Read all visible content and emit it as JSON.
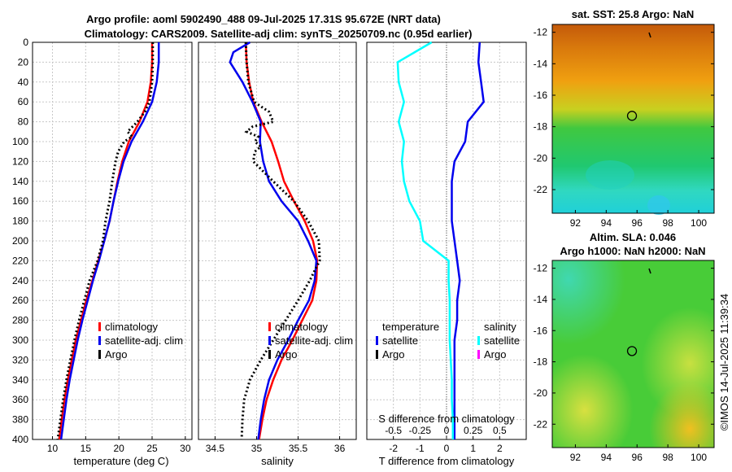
{
  "header": {
    "title_line1": "Argo profile: aoml 5902490_488 09-Jul-2025 17.31S 95.672E (NRT data)",
    "title_line2": "Climatology: CARS2009. Satellite-adj clim: synTS_20250709.nc (0.95d earlier)"
  },
  "watermark": "©IMOS 14-Jul-2025 11:39:34",
  "colors": {
    "climatology": "#ff0000",
    "satellite": "#0000ee",
    "argo": "#000000",
    "sal_sat": "#00ffff",
    "sal_argo": "#ff00ff"
  },
  "chart_data": [
    {
      "id": "temperature",
      "type": "line",
      "xlabel": "temperature (deg C)",
      "xlim": [
        7,
        31
      ],
      "xticks": [
        10,
        15,
        20,
        25,
        30
      ],
      "ylim": [
        0,
        400
      ],
      "yticks": [
        0,
        20,
        40,
        60,
        80,
        100,
        120,
        140,
        160,
        180,
        200,
        220,
        240,
        260,
        280,
        300,
        320,
        340,
        360,
        380,
        400
      ],
      "series": [
        {
          "name": "climatology",
          "color": "#ff0000",
          "depth": [
            0,
            20,
            40,
            60,
            80,
            100,
            120,
            140,
            160,
            180,
            200,
            220,
            240,
            260,
            280,
            300,
            320,
            340,
            360,
            380,
            400
          ],
          "values": [
            25.0,
            25.0,
            24.8,
            24.3,
            23.1,
            21.5,
            20.5,
            19.8,
            19.2,
            18.6,
            17.8,
            16.9,
            16.0,
            15.1,
            14.3,
            13.5,
            12.9,
            12.3,
            11.8,
            11.4,
            11.0
          ]
        },
        {
          "name": "satellite-adj. clim",
          "color": "#0000ee",
          "depth": [
            0,
            20,
            40,
            60,
            80,
            100,
            120,
            140,
            160,
            180,
            200,
            220,
            240,
            260,
            280,
            300,
            320,
            340,
            360,
            380,
            400
          ],
          "values": [
            26.0,
            26.0,
            25.7,
            25.0,
            23.6,
            21.9,
            20.7,
            19.9,
            19.2,
            18.6,
            17.8,
            17.0,
            16.1,
            15.3,
            14.5,
            13.8,
            13.2,
            12.6,
            12.1,
            11.7,
            11.3
          ]
        },
        {
          "name": "Argo",
          "color": "#000000",
          "depth": [
            0,
            20,
            40,
            60,
            70,
            80,
            90,
            95,
            100,
            110,
            120,
            140,
            160,
            180,
            200,
            220,
            240,
            260,
            280,
            300,
            320,
            340,
            360,
            380,
            400
          ],
          "values": [
            25.1,
            25.1,
            25.0,
            24.6,
            23.9,
            22.8,
            21.3,
            22.0,
            20.8,
            19.9,
            19.5,
            19.0,
            18.6,
            18.0,
            17.6,
            16.8,
            15.6,
            14.8,
            14.0,
            13.3,
            12.7,
            12.1,
            11.6,
            11.2,
            10.8
          ]
        }
      ]
    },
    {
      "id": "salinity",
      "type": "line",
      "xlabel": "salinity",
      "xlim": [
        34.3,
        36.2
      ],
      "xticks": [
        34.5,
        35,
        35.5,
        36
      ],
      "ylim": [
        0,
        400
      ],
      "series": [
        {
          "name": "climatology",
          "color": "#ff0000",
          "depth": [
            0,
            20,
            40,
            60,
            80,
            100,
            120,
            140,
            160,
            180,
            200,
            220,
            240,
            260,
            280,
            300,
            320,
            340,
            360,
            380,
            400
          ],
          "values": [
            34.87,
            34.88,
            34.91,
            34.96,
            35.06,
            35.18,
            35.26,
            35.33,
            35.45,
            35.58,
            35.68,
            35.73,
            35.72,
            35.67,
            35.55,
            35.43,
            35.3,
            35.2,
            35.12,
            35.07,
            35.03
          ]
        },
        {
          "name": "satellite-adj. clim",
          "color": "#0000ee",
          "depth": [
            0,
            10,
            20,
            40,
            60,
            80,
            100,
            120,
            140,
            160,
            180,
            200,
            220,
            240,
            260,
            280,
            300,
            320,
            340,
            360,
            380,
            400
          ],
          "values": [
            34.92,
            34.72,
            34.68,
            34.83,
            34.95,
            35.05,
            35.04,
            35.08,
            35.15,
            35.3,
            35.5,
            35.62,
            35.72,
            35.7,
            35.63,
            35.5,
            35.38,
            35.25,
            35.15,
            35.09,
            35.05,
            35.02
          ]
        },
        {
          "name": "Argo",
          "color": "#000000",
          "depth": [
            0,
            20,
            40,
            60,
            70,
            80,
            85,
            90,
            95,
            100,
            105,
            110,
            120,
            140,
            160,
            180,
            200,
            220,
            230,
            240,
            260,
            280,
            300,
            320,
            340,
            360,
            380,
            400
          ],
          "values": [
            34.87,
            34.88,
            34.9,
            34.97,
            35.15,
            35.2,
            34.95,
            34.88,
            35.02,
            34.98,
            35.05,
            34.98,
            34.96,
            35.2,
            35.45,
            35.62,
            35.75,
            35.76,
            35.7,
            35.64,
            35.5,
            35.35,
            35.2,
            35.05,
            34.92,
            34.85,
            34.83,
            34.82
          ]
        }
      ]
    },
    {
      "id": "difference",
      "type": "line",
      "xlabel": "T difference from climatology",
      "xlabel_top": "S difference from climatology",
      "xlim": [
        -3,
        3
      ],
      "xticks": [
        -2,
        -1,
        0,
        1,
        2
      ],
      "sticks": [
        "-0.5",
        "-0.25",
        "0",
        "0.25",
        "0.5"
      ],
      "ylim": [
        0,
        400
      ],
      "legend_temperature_title": "temperature",
      "legend_salinity_title": "salinity",
      "series": [
        {
          "name": "satellite",
          "group": "temperature",
          "color": "#0000ee",
          "depth": [
            0,
            20,
            40,
            60,
            80,
            100,
            120,
            140,
            160,
            180,
            200,
            220,
            240,
            260,
            280,
            300,
            320,
            340,
            360,
            380,
            400
          ],
          "values": [
            1.25,
            1.2,
            1.3,
            1.4,
            0.8,
            0.7,
            0.3,
            0.2,
            0.2,
            0.2,
            0.3,
            0.4,
            0.5,
            0.4,
            0.4,
            0.3,
            0.3,
            0.3,
            0.3,
            0.3,
            0.3
          ]
        },
        {
          "name": "satellite",
          "group": "salinity",
          "color": "#00ffff",
          "depth": [
            0,
            20,
            40,
            60,
            80,
            100,
            120,
            140,
            160,
            180,
            200,
            220,
            240,
            260,
            280,
            300,
            320,
            340,
            360,
            380,
            400
          ],
          "values": [
            -0.14,
            -0.46,
            -0.45,
            -0.4,
            -0.45,
            -0.4,
            -0.42,
            -0.4,
            -0.35,
            -0.25,
            -0.22,
            0.02,
            0.02,
            0.03,
            0.03,
            0.03,
            0.04,
            0.05,
            0.05,
            0.06,
            0.06
          ]
        },
        {
          "name": "Argo",
          "group": "temperature",
          "color": "#000000",
          "depth": [],
          "values": []
        },
        {
          "name": "Argo",
          "group": "salinity",
          "color": "#ff00ff",
          "depth": [],
          "values": []
        }
      ]
    }
  ],
  "maps": [
    {
      "id": "sst",
      "title": "sat. SST: 25.8 Argo: NaN",
      "yticks": [
        "-12",
        "-14",
        "-16",
        "-18",
        "-20",
        "-22"
      ],
      "xticks": [
        "92",
        "94",
        "96",
        "98",
        "100"
      ],
      "ylim": [
        -23.5,
        -11.5
      ],
      "xlim": [
        90.5,
        101
      ],
      "argo_lon": 95.672,
      "argo_lat": -17.31
    },
    {
      "id": "sla",
      "title_line1": "Altim. SLA: 0.046",
      "title_line2": "Argo h1000: NaN h2000: NaN",
      "yticks": [
        "-12",
        "-14",
        "-16",
        "-18",
        "-20",
        "-22"
      ],
      "xticks": [
        "92",
        "94",
        "96",
        "98",
        "100"
      ],
      "ylim": [
        -23.5,
        -11.5
      ],
      "xlim": [
        90.5,
        101
      ],
      "argo_lon": 95.672,
      "argo_lat": -17.31
    }
  ],
  "legends": {
    "left": [
      "climatology",
      "satellite-adj. clim",
      "Argo"
    ],
    "diff_temp": [
      "satellite",
      "Argo"
    ],
    "diff_sal": [
      "satellite",
      "Argo"
    ]
  }
}
